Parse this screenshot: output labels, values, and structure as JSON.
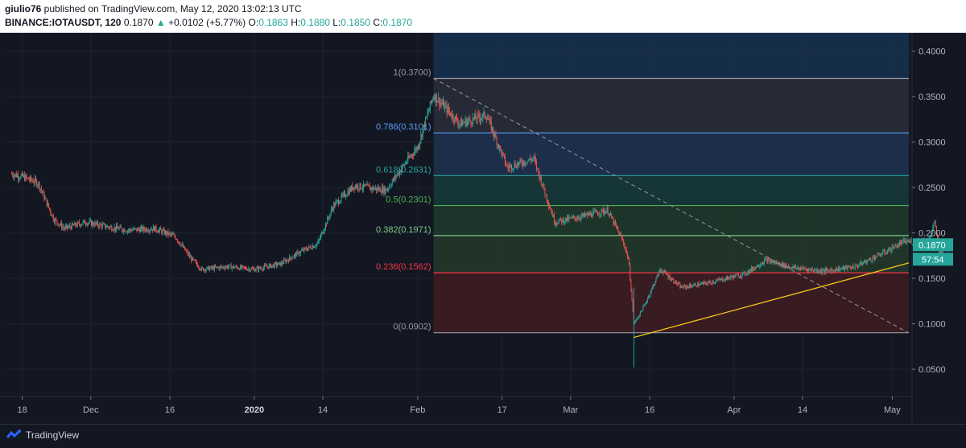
{
  "header": {
    "author": "giulio76",
    "published_text": " published on TradingView.com, May 12, 2020 13:02:13 UTC",
    "symbol": "BINANCE:IOTAUSDT, 120",
    "last_price": "0.1870",
    "change": "+0.0102 (+5.77%)",
    "o_label": "O:",
    "o_value": "0.1863",
    "h_label": "H:",
    "h_value": "0.1880",
    "l_label": "L:",
    "l_value": "0.1850",
    "c_label": "C:",
    "c_value": "0.1870"
  },
  "footer": {
    "brand": "TradingView"
  },
  "colors": {
    "background": "#131722",
    "up": "#26a69a",
    "down": "#ef5350",
    "trendline": "#f5c518",
    "price_badge": "#26a69a"
  },
  "chart_data": {
    "type": "candlestick",
    "y_axis": {
      "min": 0.02,
      "max": 0.42,
      "ticks": [
        "0.4000",
        "0.3500",
        "0.3000",
        "0.2500",
        "0.2000",
        "0.1500",
        "0.1000",
        "0.0500"
      ],
      "tick_values": [
        0.4,
        0.35,
        0.3,
        0.25,
        0.2,
        0.15,
        0.1,
        0.05
      ]
    },
    "x_axis": {
      "labels": [
        "18",
        "Dec",
        "16",
        "2020",
        "14",
        "Feb",
        "17",
        "Mar",
        "16",
        "Apr",
        "14",
        "May"
      ],
      "bold_labels": [
        "2020"
      ]
    },
    "price_path": [
      [
        "Nov 16",
        0.265
      ],
      [
        "Nov 18",
        0.262
      ],
      [
        "Nov 21",
        0.255
      ],
      [
        "Nov 24",
        0.215
      ],
      [
        "Nov 26",
        0.205
      ],
      [
        "Nov 30",
        0.212
      ],
      [
        "Dec 4",
        0.207
      ],
      [
        "Dec 8",
        0.203
      ],
      [
        "Dec 13",
        0.205
      ],
      [
        "Dec 17",
        0.196
      ],
      [
        "Dec 20",
        0.172
      ],
      [
        "Dec 22",
        0.16
      ],
      [
        "Dec 27",
        0.163
      ],
      [
        "Jan 1",
        0.16
      ],
      [
        "Jan 6",
        0.166
      ],
      [
        "Jan 10",
        0.18
      ],
      [
        "Jan 13",
        0.188
      ],
      [
        "Jan 16",
        0.23
      ],
      [
        "Jan 20",
        0.252
      ],
      [
        "Jan 26",
        0.247
      ],
      [
        "Jan 29",
        0.272
      ],
      [
        "Feb 1",
        0.295
      ],
      [
        "Feb 4",
        0.352
      ],
      [
        "Feb 9",
        0.32
      ],
      [
        "Feb 14",
        0.33
      ],
      [
        "Feb 18",
        0.272
      ],
      [
        "Feb 23",
        0.282
      ],
      [
        "Feb 27",
        0.212
      ],
      [
        "Mar 3",
        0.218
      ],
      [
        "Mar 8",
        0.225
      ],
      [
        "Mar 11",
        0.19
      ],
      [
        "Mar 12",
        0.17
      ],
      [
        "Mar 13",
        0.1
      ],
      [
        "Mar 15",
        0.12
      ],
      [
        "Mar 18",
        0.16
      ],
      [
        "Mar 22",
        0.14
      ],
      [
        "Mar 27",
        0.145
      ],
      [
        "Apr 3",
        0.155
      ],
      [
        "Apr 7",
        0.17
      ],
      [
        "Apr 12",
        0.162
      ],
      [
        "Apr 18",
        0.158
      ],
      [
        "Apr 24",
        0.163
      ],
      [
        "Apr 30",
        0.18
      ],
      [
        "May 3",
        0.19
      ],
      [
        "May 8",
        0.192
      ],
      [
        "May 9",
        0.212
      ],
      [
        "May 10",
        0.178
      ],
      [
        "May 12",
        0.187
      ]
    ],
    "fibonacci": [
      {
        "level": "1",
        "price": 0.37,
        "label": "1(0.3700)",
        "color": "#9598a1",
        "fill": "#2a2e39"
      },
      {
        "level": "0.786",
        "price": 0.3101,
        "label": "0.786(0.3101)",
        "color": "#5b9cf6",
        "fill": "#1e3350"
      },
      {
        "level": "0.618",
        "price": 0.2631,
        "label": "0.618(0.2631)",
        "color": "#26a69a",
        "fill": "#163b3a"
      },
      {
        "level": "0.5",
        "price": 0.2301,
        "label": "0.5(0.2301)",
        "color": "#4caf50",
        "fill": "#1e3a2a"
      },
      {
        "level": "0.382",
        "price": 0.1971,
        "label": "0.382(0.1971)",
        "color": "#81c784",
        "fill": "#253a2c"
      },
      {
        "level": "0.236",
        "price": 0.1562,
        "label": "0.236(0.1562)",
        "color": "#f23645",
        "fill": "#3d1d22"
      },
      {
        "level": "0",
        "price": 0.0902,
        "label": "0(0.0902)",
        "color": "#9598a1",
        "fill": "#1e2230"
      }
    ],
    "fib_top_zone": {
      "top_price": 0.42,
      "fill": "#17304e"
    },
    "fib_start": "Feb 4",
    "trendline": {
      "from": [
        "Mar 13",
        0.085
      ],
      "to": [
        "May 12",
        0.167
      ]
    },
    "diagonal": {
      "from": [
        "Feb 4",
        0.37
      ],
      "to": [
        "May 12",
        0.09
      ]
    },
    "last_price_badge": "0.1870",
    "countdown_badge": "57:54",
    "wick_low": [
      "Mar 13",
      0.052
    ]
  }
}
